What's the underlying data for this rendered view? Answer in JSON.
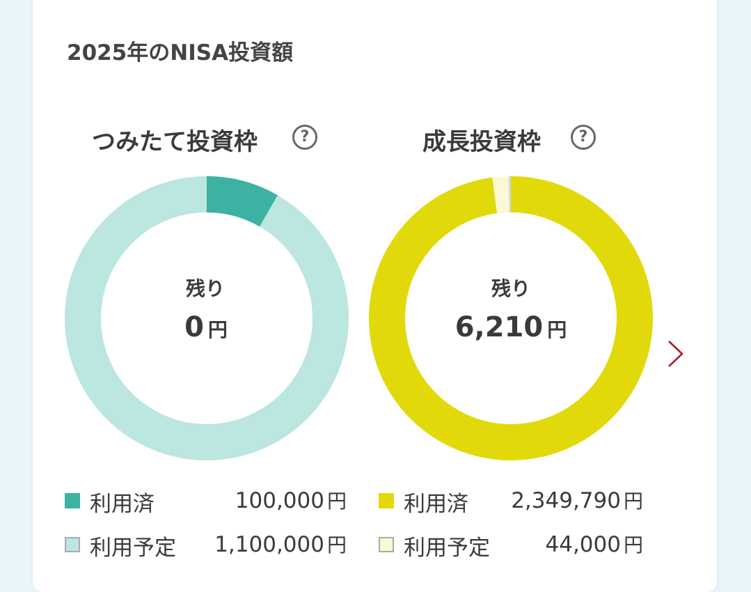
{
  "card": {
    "title": "2025年のNISA投資額"
  },
  "panels": [
    {
      "title": "つみたて投資枠",
      "center_label": "残り",
      "remaining_value": "0",
      "unit": "円",
      "legend": [
        {
          "label": "利用済",
          "value": "100,000",
          "unit": "円",
          "color": "#3db2a2"
        },
        {
          "label": "利用予定",
          "value": "1,100,000",
          "unit": "円",
          "color": "#bce6e0"
        }
      ]
    },
    {
      "title": "成長投資枠",
      "center_label": "残り",
      "remaining_value": "6,210",
      "unit": "円",
      "legend": [
        {
          "label": "利用済",
          "value": "2,349,790",
          "unit": "円",
          "color": "#e2d90b"
        },
        {
          "label": "利用予定",
          "value": "44,000",
          "unit": "円",
          "color": "#fbf8d6"
        }
      ]
    }
  ],
  "chart_data": [
    {
      "type": "pie",
      "title": "つみたて投資枠",
      "categories": [
        "利用済",
        "利用予定",
        "残り"
      ],
      "values": [
        100000,
        1100000,
        0
      ],
      "colors": [
        "#3db2a2",
        "#bce6e0",
        "#e7f4f2"
      ],
      "donut": true
    },
    {
      "type": "pie",
      "title": "成長投資枠",
      "categories": [
        "利用済",
        "利用予定",
        "残り"
      ],
      "values": [
        2349790,
        44000,
        6210
      ],
      "colors": [
        "#e2d90b",
        "#fbf8d6",
        "#d8d8d8"
      ],
      "donut": true
    }
  ]
}
